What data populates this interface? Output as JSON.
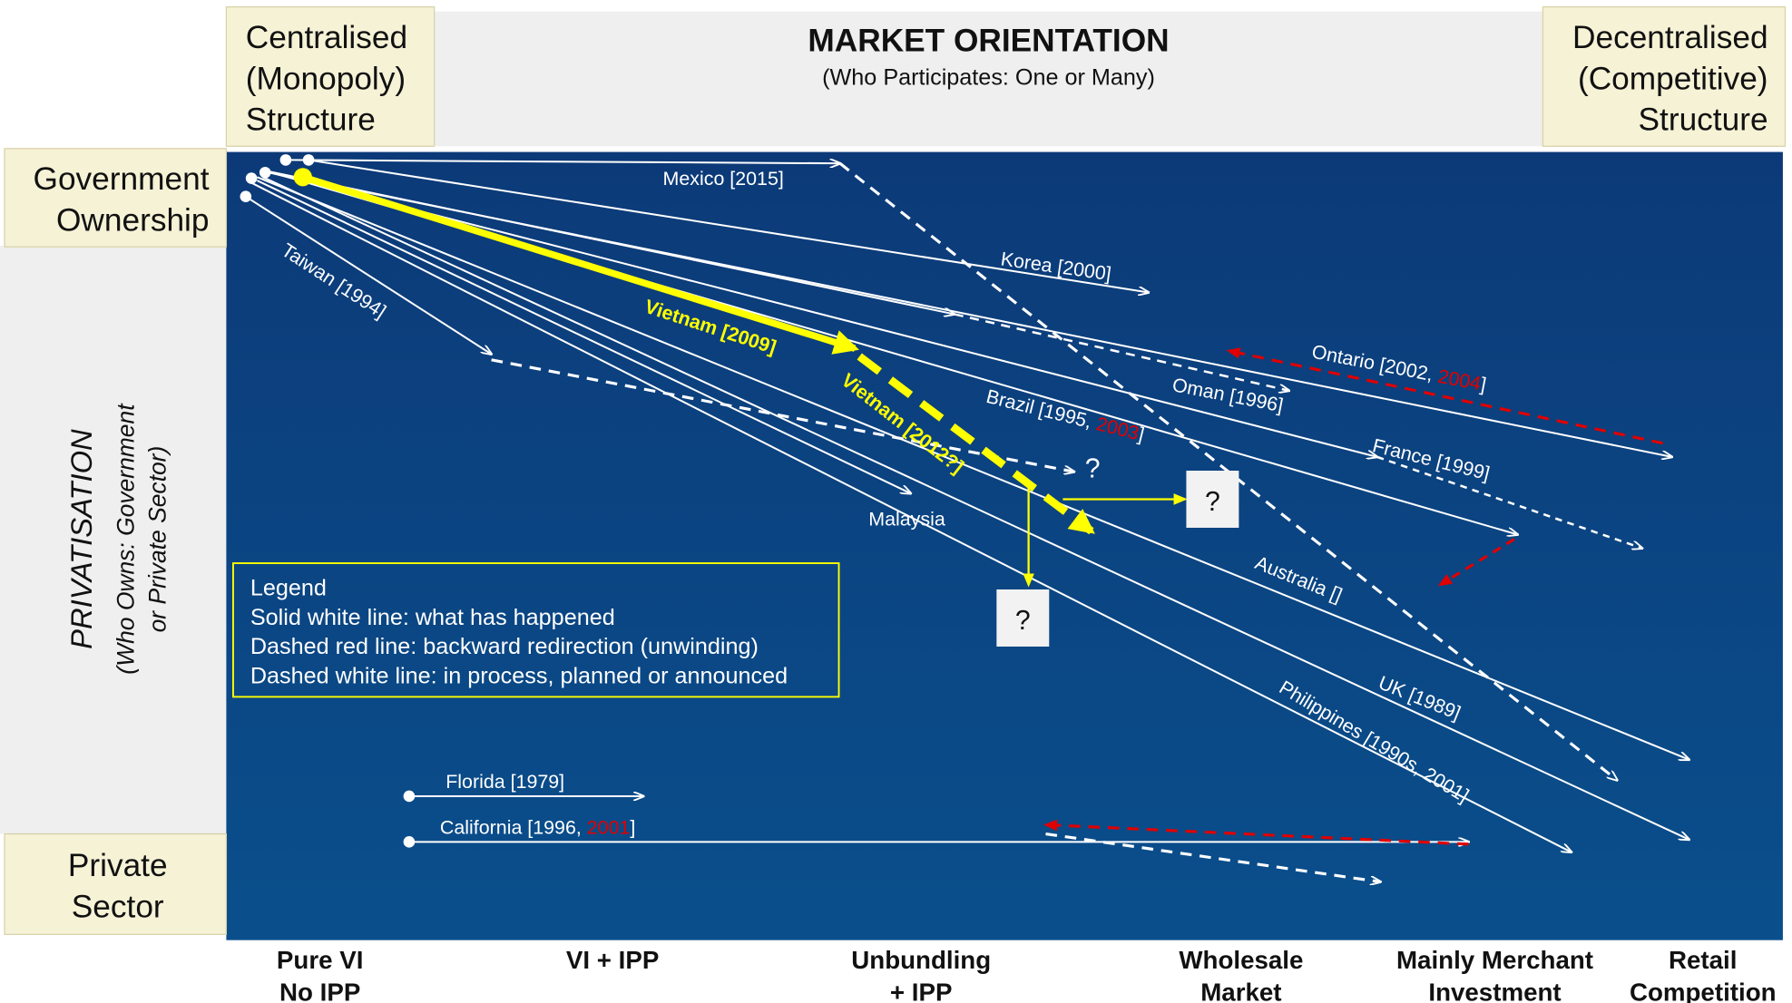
{
  "header": {
    "left_corner": [
      "Centralised",
      "(Monopoly)",
      "Structure"
    ],
    "title": "MARKET ORIENTATION",
    "subtitle": "(Who Participates:  One or Many)",
    "right_corner": [
      "Decentralised",
      "(Competitive)",
      "Structure"
    ]
  },
  "left_axis": {
    "top": [
      "Government",
      "Ownership"
    ],
    "title": "PRIVATISATION",
    "subtitle": [
      "(Who Owns: Government",
      "or Private Sector)"
    ],
    "bottom": [
      "Private",
      "Sector"
    ]
  },
  "stages": [
    [
      "Pure VI",
      "No IPP"
    ],
    [
      "VI + IPP"
    ],
    [
      "Unbundling",
      "+ IPP"
    ],
    [
      "Wholesale",
      "Market"
    ],
    [
      "Mainly Merchant",
      "Investment"
    ],
    [
      "Retail",
      "Competition"
    ]
  ],
  "highlight_color": "#e00000",
  "countries": [
    {
      "parts": [
        "Mexico [2015]"
      ]
    },
    {
      "parts": [
        "Korea [2000]"
      ]
    },
    {
      "parts": [
        "Ontario [2002, ",
        "2004",
        "]"
      ]
    },
    {
      "parts": [
        "Oman [1996]"
      ]
    },
    {
      "parts": [
        "Brazil [1995, ",
        "2003",
        "]"
      ]
    },
    {
      "parts": [
        "France [1999]"
      ]
    },
    {
      "parts": [
        "Australia []"
      ]
    },
    {
      "parts": [
        "UK [1989]"
      ]
    },
    {
      "parts": [
        "Philippines [1990s, 2001]"
      ]
    },
    {
      "parts": [
        "Malaysia"
      ]
    },
    {
      "parts": [
        "Taiwan [1994]"
      ]
    },
    {
      "parts": [
        "Vietnam [2009]"
      ]
    },
    {
      "parts": [
        "Vietnam [2012?]"
      ]
    },
    {
      "parts": [
        "Florida [1979]"
      ]
    },
    {
      "parts": [
        "California [1996, ",
        "2001",
        "]"
      ]
    }
  ],
  "questions": [
    "?",
    "?",
    "?"
  ],
  "legend": {
    "title": "Legend",
    "items": [
      "Solid white line: what has happened",
      "Dashed red line: backward redirection (unwinding)",
      "Dashed white line: in process, planned or announced"
    ]
  }
}
